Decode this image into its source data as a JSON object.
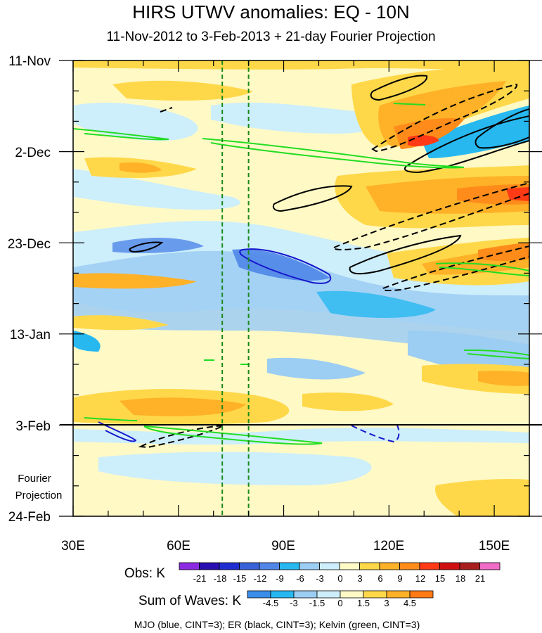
{
  "chart_data": {
    "type": "heatmap",
    "title": "HIRS UTWV anomalies: EQ - 10N",
    "subtitle": "11-Nov-2012 to 3-Feb-2013 + 21-day Fourier Projection",
    "x_axis": {
      "range": [
        30,
        160
      ],
      "ticks": [
        30,
        60,
        90,
        120,
        150
      ],
      "tick_labels": [
        "30E",
        "60E",
        "90E",
        "120E",
        "150E"
      ]
    },
    "y_axis": {
      "tick_labels": [
        "11-Nov",
        "2-Dec",
        "23-Dec",
        "13-Jan",
        "3-Feb",
        "24-Feb"
      ],
      "day_index": [
        0,
        21,
        42,
        63,
        84,
        105
      ]
    },
    "projection_label": [
      "Fourier",
      "Projection"
    ],
    "obs_end_label": "3-Feb",
    "reference_lines_lon": [
      72.5,
      80
    ],
    "obs_legend": {
      "label": "Obs: K",
      "levels": [
        "-21",
        "-18",
        "-15",
        "-12",
        "-9",
        "-6",
        "-3",
        "0",
        "3",
        "6",
        "9",
        "12",
        "15",
        "18",
        "21"
      ],
      "colors": [
        "#8c2be2",
        "#2a0fb0",
        "#1f2ed1",
        "#3a62d8",
        "#4f86e8",
        "#27b8f0",
        "#9ccdf3",
        "#cdeefb",
        "#fff9c6",
        "#ffd84a",
        "#ffb127",
        "#ff8c1a",
        "#ff3a14",
        "#d01010",
        "#a8201e",
        "#f06cc6"
      ]
    },
    "waves_legend": {
      "label": "Sum of Waves: K",
      "levels": [
        "-4.5",
        "-3",
        "-1.5",
        "0",
        "1.5",
        "3",
        "4.5"
      ],
      "colors": [
        "#3a8de8",
        "#27b8f0",
        "#9ccdf3",
        "#cdeefb",
        "#fff9c6",
        "#ffd84a",
        "#ffb127",
        "#ff7a14"
      ]
    },
    "footer": "MJO (blue, CINT=3); ER (black, CINT=3); Kelvin (green, CINT=3)"
  }
}
